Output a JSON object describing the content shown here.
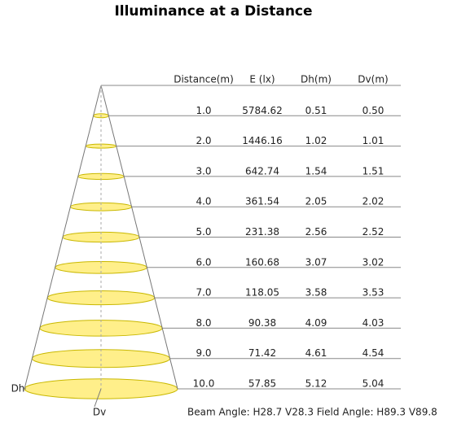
{
  "title": "Illuminance at a Distance",
  "table": {
    "headers": [
      "Distance(m)",
      "E (lx)",
      "Dh(m)",
      "Dv(m)"
    ],
    "rows": [
      [
        "1.0",
        "5784.62",
        "0.51",
        "0.50"
      ],
      [
        "2.0",
        "1446.16",
        "1.02",
        "1.01"
      ],
      [
        "3.0",
        "642.74",
        "1.54",
        "1.51"
      ],
      [
        "4.0",
        "361.54",
        "2.05",
        "2.02"
      ],
      [
        "5.0",
        "231.38",
        "2.56",
        "2.52"
      ],
      [
        "6.0",
        "160.68",
        "3.07",
        "3.02"
      ],
      [
        "7.0",
        "118.05",
        "3.58",
        "3.53"
      ],
      [
        "8.0",
        "90.38",
        "4.09",
        "4.03"
      ],
      [
        "9.0",
        "71.42",
        "4.61",
        "4.54"
      ],
      [
        "10.0",
        "57.85",
        "5.12",
        "5.04"
      ]
    ]
  },
  "labels": {
    "dh": "Dh",
    "dv": "Dv"
  },
  "footer": "Beam Angle: H28.7 V28.3  Field Angle: H89.3 V89.8"
}
